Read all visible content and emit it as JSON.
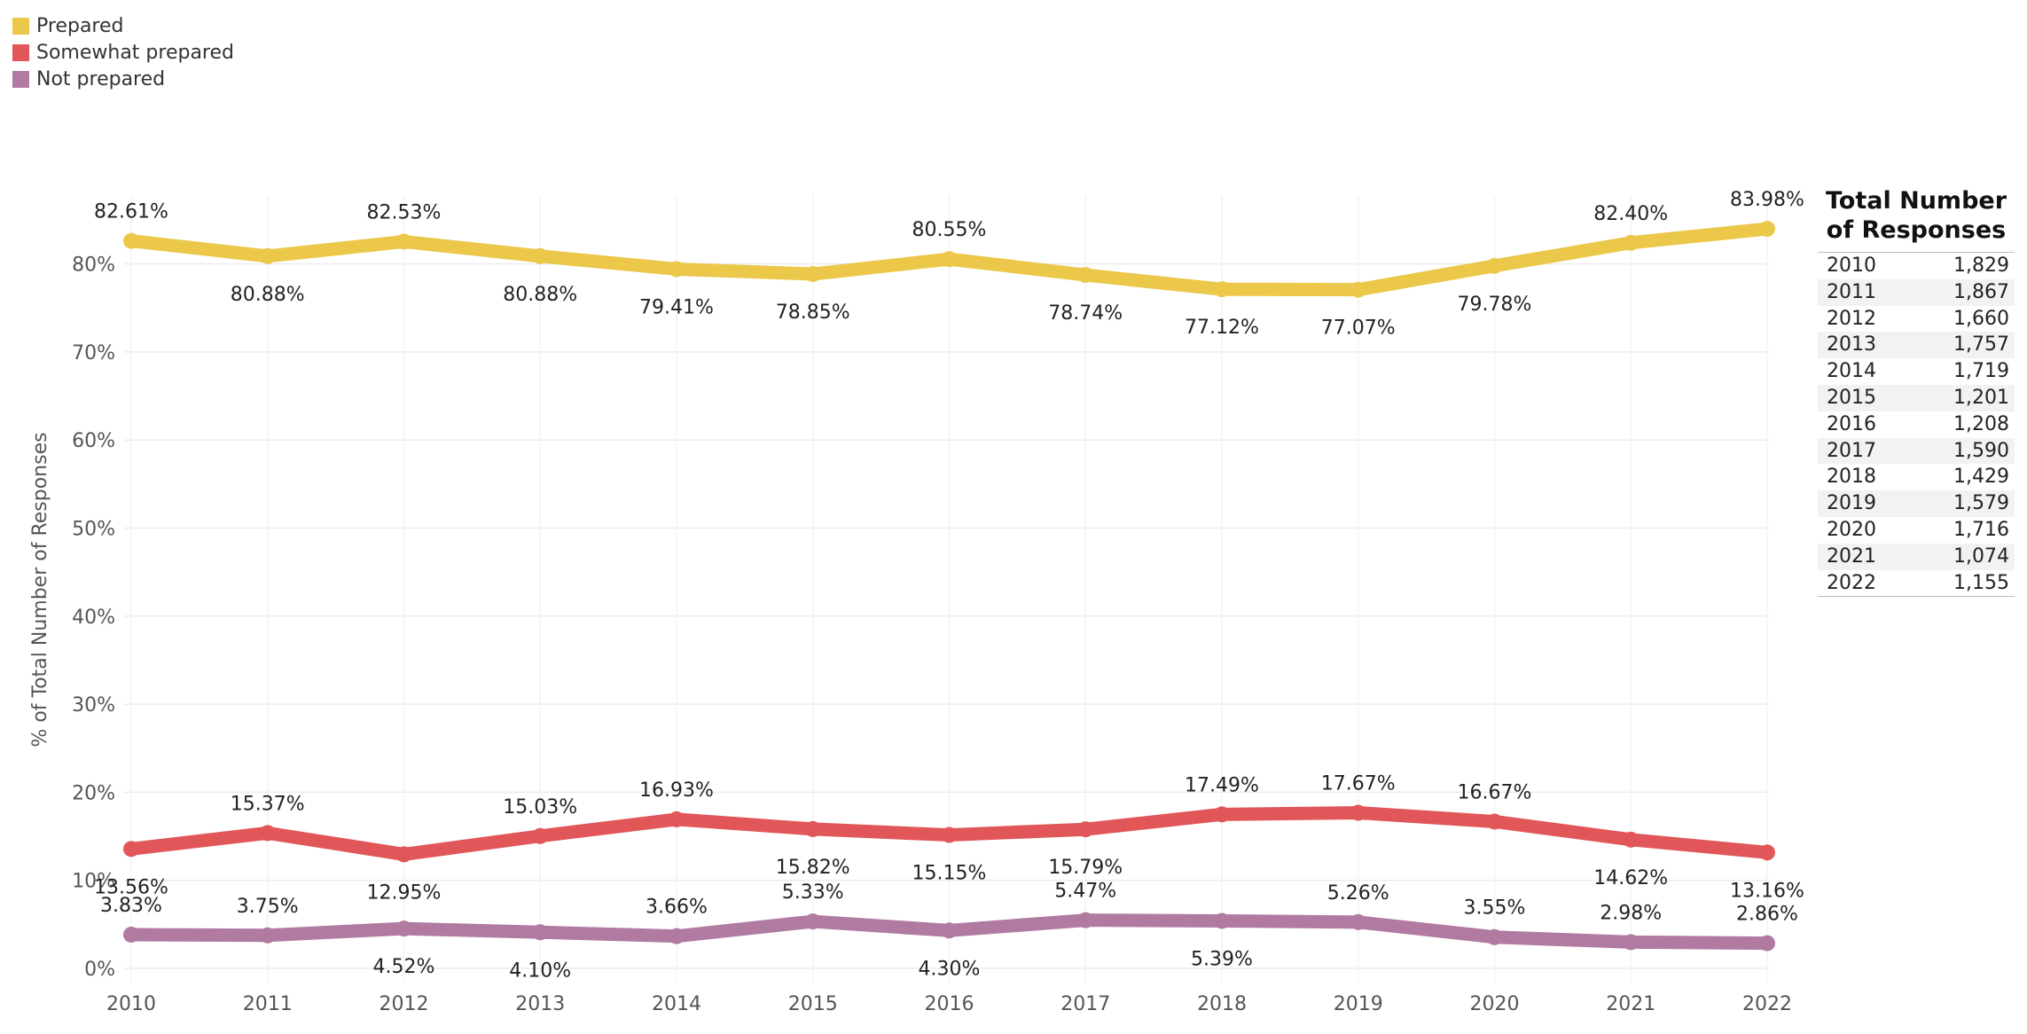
{
  "chart_data": {
    "type": "line",
    "title": "",
    "xlabel": "",
    "ylabel": "% of Total Number of Responses",
    "ylim": [
      0,
      85
    ],
    "y_ticks": [
      0,
      10,
      20,
      30,
      40,
      50,
      60,
      70,
      80
    ],
    "y_tick_labels": [
      "0%",
      "10%",
      "20%",
      "30%",
      "40%",
      "50%",
      "60%",
      "70%",
      "80%"
    ],
    "categories": [
      "2010",
      "2011",
      "2012",
      "2013",
      "2014",
      "2015",
      "2016",
      "2017",
      "2018",
      "2019",
      "2020",
      "2021",
      "2022"
    ],
    "series": [
      {
        "name": "Prepared",
        "color": "#EBC84A",
        "values": [
          82.61,
          80.88,
          82.53,
          80.88,
          79.41,
          78.85,
          80.55,
          78.74,
          77.12,
          77.07,
          79.78,
          82.4,
          83.98
        ],
        "labels": [
          "82.61%",
          "80.88%",
          "82.53%",
          "80.88%",
          "79.41%",
          "78.85%",
          "80.55%",
          "78.74%",
          "77.12%",
          "77.07%",
          "79.78%",
          "82.40%",
          "83.98%"
        ],
        "label_pos": [
          "above",
          "below",
          "above",
          "below",
          "below",
          "below",
          "above",
          "below",
          "below",
          "below",
          "below",
          "above",
          "above"
        ]
      },
      {
        "name": "Somewhat prepared",
        "color": "#E15759",
        "values": [
          13.56,
          15.37,
          12.95,
          15.03,
          16.93,
          15.82,
          15.15,
          15.79,
          17.49,
          17.67,
          16.67,
          14.62,
          13.16
        ],
        "labels": [
          "13.56%",
          "15.37%",
          "12.95%",
          "15.03%",
          "16.93%",
          "15.82%",
          "15.15%",
          "15.79%",
          "17.49%",
          "17.67%",
          "16.67%",
          "14.62%",
          "13.16%"
        ],
        "label_pos": [
          "below",
          "above",
          "below",
          "above",
          "above",
          "below",
          "below",
          "below",
          "above",
          "above",
          "above",
          "below",
          "below"
        ]
      },
      {
        "name": "Not prepared",
        "color": "#B07AA1",
        "values": [
          3.83,
          3.75,
          4.52,
          4.1,
          3.66,
          5.33,
          4.3,
          5.47,
          5.39,
          5.26,
          3.55,
          2.98,
          2.86
        ],
        "labels": [
          "3.83%",
          "3.75%",
          "4.52%",
          "4.10%",
          "3.66%",
          "5.33%",
          "4.30%",
          "5.47%",
          "5.39%",
          "5.26%",
          "3.55%",
          "2.98%",
          "2.86%"
        ],
        "label_pos": [
          "above",
          "above",
          "below",
          "below",
          "above",
          "above",
          "below",
          "above",
          "below",
          "above",
          "above",
          "above",
          "above"
        ]
      }
    ]
  },
  "legend": [
    {
      "label": "Prepared",
      "color": "#EBC84A"
    },
    {
      "label": "Somewhat prepared",
      "color": "#E15759"
    },
    {
      "label": "Not prepared",
      "color": "#B07AA1"
    }
  ],
  "responses_table": {
    "title_line1": "Total Number",
    "title_line2": "of Responses",
    "rows": [
      {
        "year": "2010",
        "count": "1,829"
      },
      {
        "year": "2011",
        "count": "1,867"
      },
      {
        "year": "2012",
        "count": "1,660"
      },
      {
        "year": "2013",
        "count": "1,757"
      },
      {
        "year": "2014",
        "count": "1,719"
      },
      {
        "year": "2015",
        "count": "1,201"
      },
      {
        "year": "2016",
        "count": "1,208"
      },
      {
        "year": "2017",
        "count": "1,590"
      },
      {
        "year": "2018",
        "count": "1,429"
      },
      {
        "year": "2019",
        "count": "1,579"
      },
      {
        "year": "2020",
        "count": "1,716"
      },
      {
        "year": "2021",
        "count": "1,074"
      },
      {
        "year": "2022",
        "count": "1,155"
      }
    ]
  }
}
